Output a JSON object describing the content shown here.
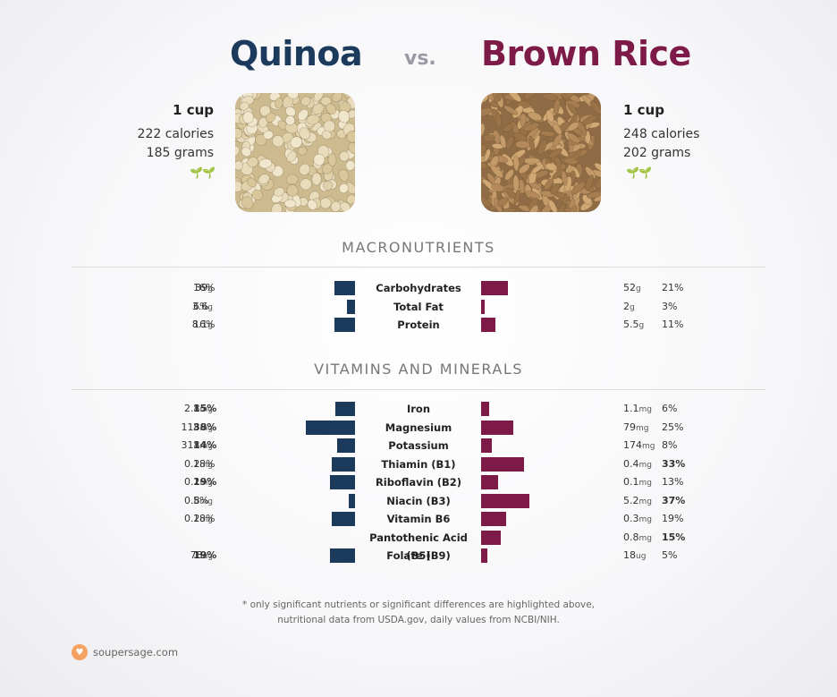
{
  "header": {
    "left_title": "Quinoa",
    "vs": "vs.",
    "right_title": "Brown Rice"
  },
  "colors": {
    "left": "#1b3a5c",
    "right": "#7d1a47",
    "sprout": "#2a8a2a"
  },
  "foods": {
    "left": {
      "serving": "1 cup",
      "calories": "222 calories",
      "grams": "185 grams",
      "sprout_icon": "sprout-icon"
    },
    "right": {
      "serving": "1 cup",
      "calories": "248 calories",
      "grams": "202 grams",
      "sprout_icon": "sprout-icon"
    }
  },
  "sections": {
    "macro": "MACRONUTRIENTS",
    "vitamins": "VITAMINS AND MINERALS"
  },
  "chart_data": [
    {
      "type": "bar",
      "categories": [
        "Carbohydrates",
        "Total Fat",
        "Protein"
      ],
      "series": [
        {
          "name": "Quinoa",
          "values": [
            16,
            6,
            16
          ],
          "amounts": [
            "39",
            "3.6",
            "8.1"
          ],
          "units": [
            "g",
            "g",
            "g"
          ],
          "bold": [
            false,
            false,
            false
          ]
        },
        {
          "name": "Brown Rice",
          "values": [
            21,
            3,
            11
          ],
          "amounts": [
            "52",
            "2",
            "5.5"
          ],
          "units": [
            "g",
            "g",
            "g"
          ],
          "bold": [
            false,
            false,
            false
          ]
        }
      ],
      "value_unit": "%"
    },
    {
      "type": "bar",
      "categories": [
        "Iron",
        "Magnesium",
        "Potassium",
        "Thiamin (B1)",
        "Riboflavin (B2)",
        "Niacin (B3)",
        "Vitamin B6",
        "Pantothenic Acid (B5)",
        "Folate (B9)"
      ],
      "series": [
        {
          "name": "Quinoa",
          "values": [
            15,
            38,
            14,
            18,
            19,
            5,
            18,
            null,
            19
          ],
          "amounts": [
            "2.8",
            "118",
            "318",
            "0.2",
            "0.2",
            "0.8",
            "0.2",
            "",
            "78"
          ],
          "units": [
            "mg",
            "mg",
            "mg",
            "mg",
            "mg",
            "mg",
            "mg",
            "",
            "ug"
          ],
          "bold": [
            true,
            true,
            true,
            false,
            true,
            false,
            false,
            false,
            true
          ]
        },
        {
          "name": "Brown Rice",
          "values": [
            6,
            25,
            8,
            33,
            13,
            37,
            19,
            15,
            5
          ],
          "amounts": [
            "1.1",
            "79",
            "174",
            "0.4",
            "0.1",
            "5.2",
            "0.3",
            "0.8",
            "18"
          ],
          "units": [
            "mg",
            "mg",
            "mg",
            "mg",
            "mg",
            "mg",
            "mg",
            "mg",
            "ug"
          ],
          "bold": [
            false,
            false,
            false,
            true,
            false,
            true,
            false,
            true,
            false
          ]
        }
      ],
      "value_unit": "%"
    }
  ],
  "footnote": {
    "line1": "* only significant nutrients or significant differences are highlighted above,",
    "line2": "nutritional data from USDA.gov, daily values from NCBI/NIH."
  },
  "brand": {
    "name": "soupersage.com",
    "logo_icon": "heart-icon"
  }
}
